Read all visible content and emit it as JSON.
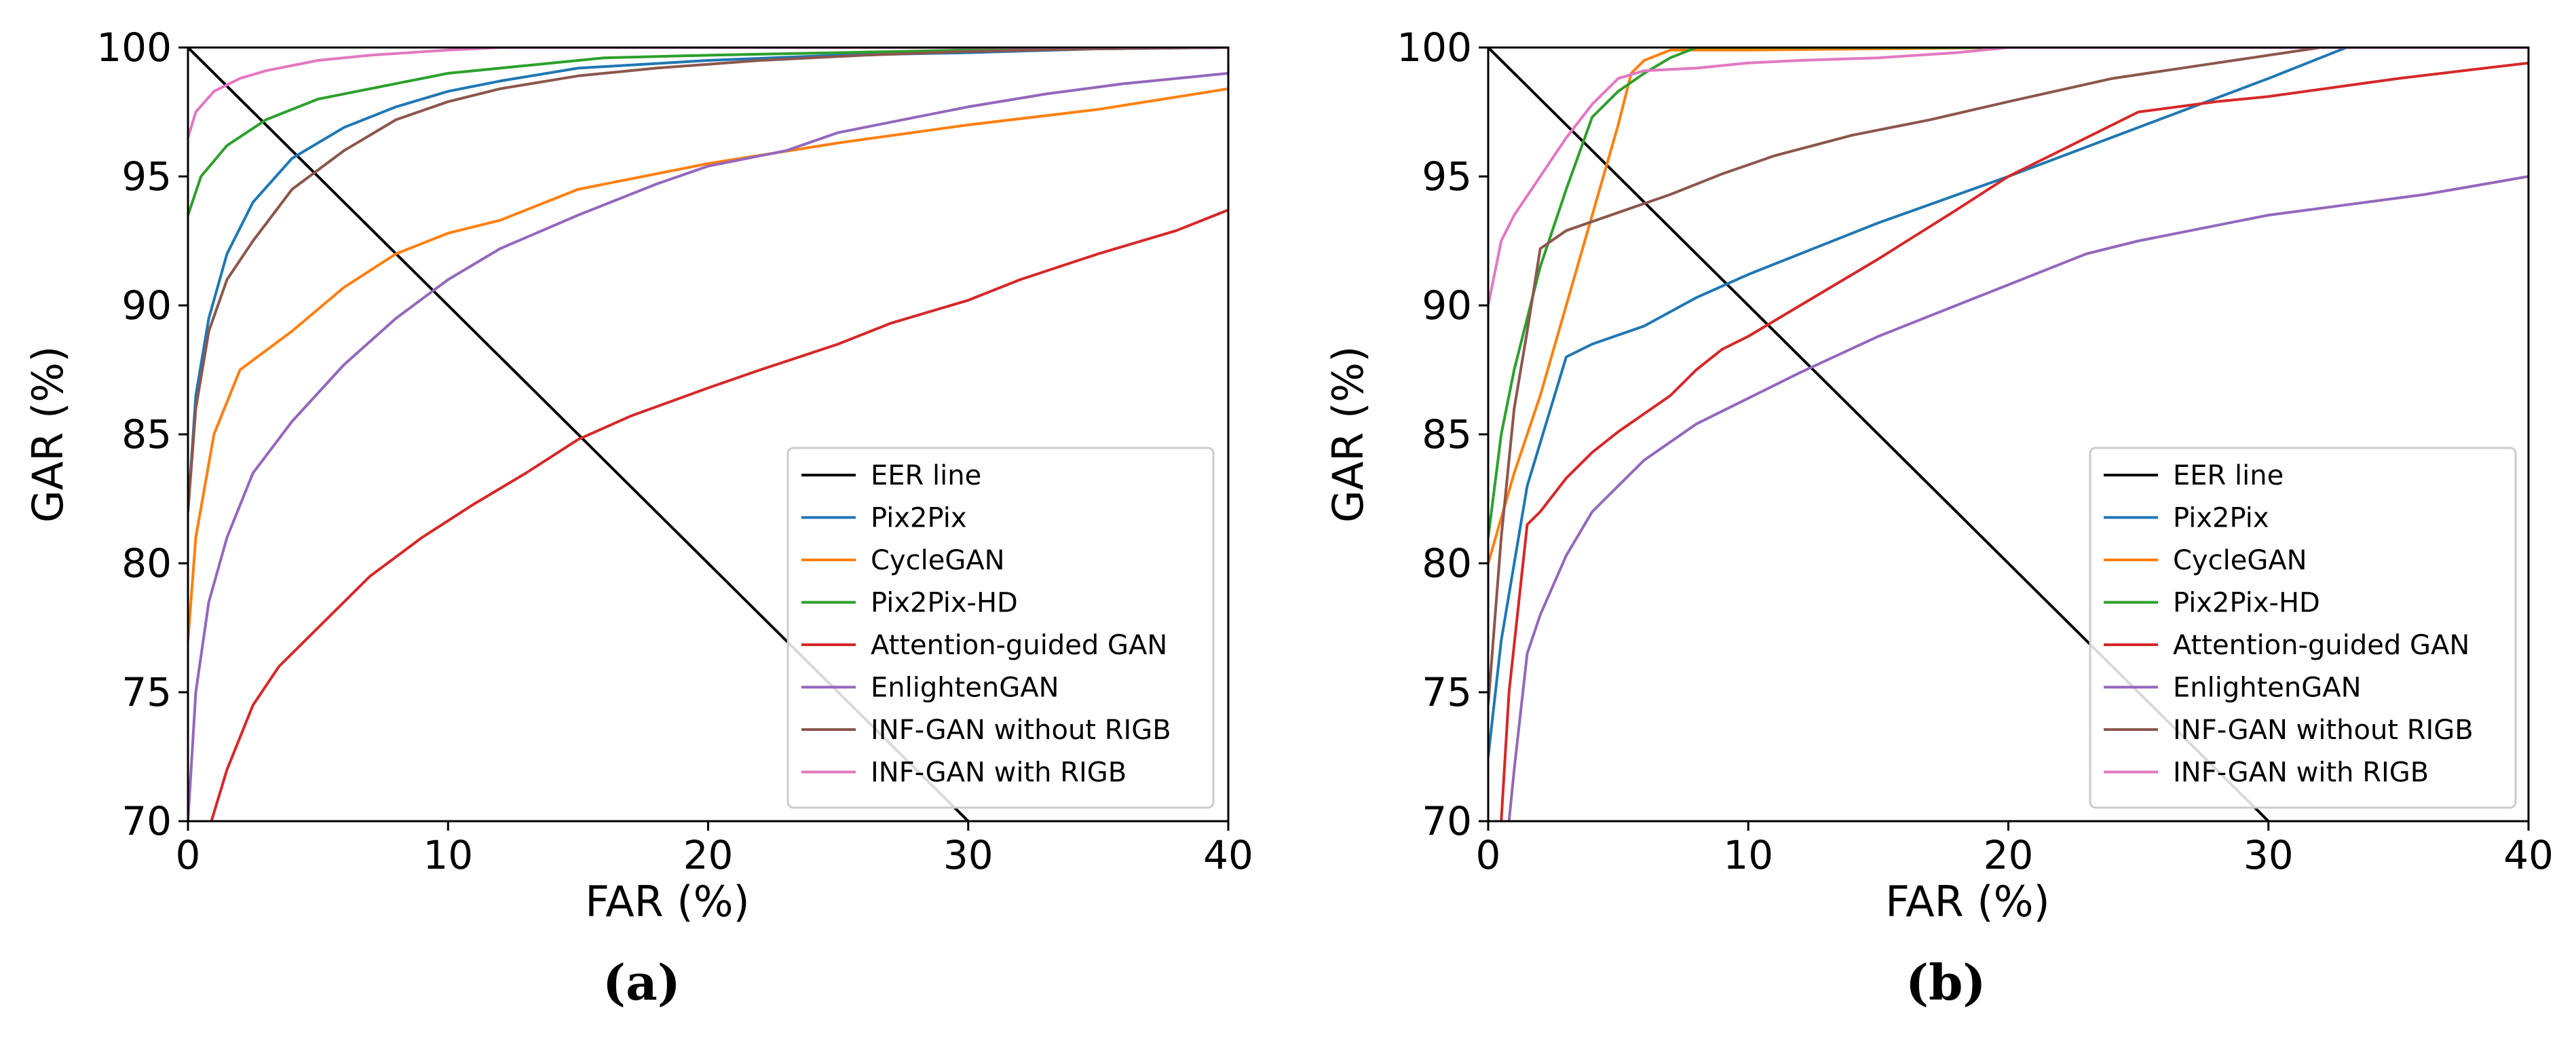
{
  "chart_data": [
    {
      "panel_label": "(a)",
      "type": "line",
      "xlabel": "FAR (%)",
      "ylabel": "GAR (%)",
      "xlim": [
        0,
        40
      ],
      "ylim": [
        70,
        100
      ],
      "xticks": [
        0,
        10,
        20,
        30,
        40
      ],
      "yticks": [
        70,
        75,
        80,
        85,
        90,
        95,
        100
      ],
      "grid": false,
      "legend_position": "lower-right",
      "series": [
        {
          "name": "EER line",
          "color": "#000000",
          "x": [
            0,
            30
          ],
          "y": [
            100,
            70
          ]
        },
        {
          "name": "Pix2Pix",
          "color": "#1f77b4",
          "x": [
            0,
            0.3,
            0.8,
            1.5,
            2.5,
            4,
            6,
            8,
            10,
            12,
            15,
            20,
            25,
            30,
            35,
            40
          ],
          "y": [
            82,
            86.5,
            89.5,
            92,
            94,
            95.7,
            96.9,
            97.7,
            98.3,
            98.7,
            99.2,
            99.5,
            99.7,
            99.8,
            99.95,
            100
          ]
        },
        {
          "name": "CycleGAN",
          "color": "#ff7f0e",
          "x": [
            0,
            0.3,
            1,
            2,
            4,
            6,
            8,
            10,
            12,
            15,
            20,
            25,
            30,
            35,
            40
          ],
          "y": [
            77,
            81,
            85,
            87.5,
            89,
            90.7,
            92,
            92.8,
            93.3,
            94.5,
            95.5,
            96.3,
            97,
            97.6,
            98.4
          ]
        },
        {
          "name": "Pix2Pix-HD",
          "color": "#2ca02c",
          "x": [
            0,
            0.5,
            1.5,
            3,
            5,
            8,
            10,
            13,
            16,
            20,
            25,
            30,
            35,
            40
          ],
          "y": [
            93.5,
            95,
            96.2,
            97.2,
            98,
            98.6,
            99,
            99.3,
            99.6,
            99.7,
            99.8,
            99.9,
            100,
            100
          ]
        },
        {
          "name": "Attention-guided GAN",
          "color": "#d62728",
          "x": [
            0.9,
            1.5,
            2.5,
            3.5,
            5,
            7,
            9,
            11,
            13,
            15,
            17,
            20,
            22,
            25,
            27,
            30,
            32,
            35,
            38,
            40
          ],
          "y": [
            70,
            72,
            74.5,
            76,
            77.5,
            79.5,
            81,
            82.3,
            83.5,
            84.8,
            85.7,
            86.8,
            87.5,
            88.5,
            89.3,
            90.2,
            91,
            92,
            92.9,
            93.7
          ]
        },
        {
          "name": "EnlightenGAN",
          "color": "#9467bd",
          "x": [
            0,
            0.3,
            0.8,
            1.5,
            2.5,
            4,
            6,
            8,
            10,
            12,
            15,
            18,
            20,
            23,
            25,
            28,
            30,
            33,
            36,
            40
          ],
          "y": [
            70,
            75,
            78.5,
            81,
            83.5,
            85.5,
            87.7,
            89.5,
            91,
            92.2,
            93.5,
            94.7,
            95.4,
            96,
            96.7,
            97.3,
            97.7,
            98.2,
            98.6,
            99
          ]
        },
        {
          "name": "INF-GAN without RIGB",
          "color": "#8c564b",
          "x": [
            0,
            0.3,
            0.8,
            1.5,
            2.5,
            4,
            6,
            8,
            10,
            12,
            15,
            18,
            22,
            26,
            30,
            35,
            40
          ],
          "y": [
            82,
            86,
            89,
            91,
            92.5,
            94.5,
            96,
            97.2,
            97.9,
            98.4,
            98.9,
            99.2,
            99.5,
            99.7,
            99.85,
            99.95,
            100
          ]
        },
        {
          "name": "INF-GAN with RIGB",
          "color": "#e377c2",
          "x": [
            0,
            0.3,
            1,
            2,
            3,
            5,
            7,
            10,
            12,
            15,
            20,
            30,
            40
          ],
          "y": [
            96.5,
            97.5,
            98.3,
            98.8,
            99.1,
            99.5,
            99.7,
            99.9,
            100,
            100,
            100,
            100,
            100
          ]
        }
      ]
    },
    {
      "panel_label": "(b)",
      "type": "line",
      "xlabel": "FAR (%)",
      "ylabel": "GAR (%)",
      "xlim": [
        0,
        40
      ],
      "ylim": [
        70,
        100
      ],
      "xticks": [
        0,
        10,
        20,
        30,
        40
      ],
      "yticks": [
        70,
        75,
        80,
        85,
        90,
        95,
        100
      ],
      "grid": false,
      "legend_position": "lower-right",
      "series": [
        {
          "name": "EER line",
          "color": "#000000",
          "x": [
            0,
            30
          ],
          "y": [
            100,
            70
          ]
        },
        {
          "name": "Pix2Pix",
          "color": "#1f77b4",
          "x": [
            0,
            0.5,
            1.5,
            3,
            4,
            6,
            8,
            10,
            12,
            15,
            20,
            25,
            30,
            33
          ],
          "y": [
            72.5,
            77,
            83,
            88,
            88.5,
            89.2,
            90.3,
            91.2,
            92,
            93.2,
            95,
            96.9,
            98.8,
            100
          ]
        },
        {
          "name": "CycleGAN",
          "color": "#ff7f0e",
          "x": [
            0,
            1,
            2,
            3,
            4,
            5,
            5.5,
            6,
            7,
            10,
            20,
            30,
            40
          ],
          "y": [
            80,
            83.5,
            86.5,
            90,
            93.5,
            97,
            99,
            99.5,
            99.9,
            99.9,
            100,
            100,
            100
          ]
        },
        {
          "name": "Pix2Pix-HD",
          "color": "#2ca02c",
          "x": [
            0,
            0.5,
            1,
            2,
            3,
            4,
            5,
            6,
            7,
            8,
            10,
            20,
            40
          ],
          "y": [
            81,
            85,
            87.5,
            91.5,
            94.5,
            97.3,
            98.3,
            99,
            99.6,
            100,
            100,
            100,
            100
          ]
        },
        {
          "name": "Attention-guided GAN",
          "color": "#d62728",
          "x": [
            0.5,
            0.8,
            1.5,
            2,
            3,
            4,
            5,
            6,
            7,
            8,
            9,
            10,
            12,
            15,
            18,
            20,
            22,
            25,
            28,
            30,
            35,
            40
          ],
          "y": [
            70,
            75,
            81.5,
            82,
            83.3,
            84.3,
            85.1,
            85.8,
            86.5,
            87.5,
            88.3,
            88.8,
            90,
            91.8,
            93.7,
            95,
            96,
            97.5,
            97.9,
            98.1,
            98.8,
            99.4
          ]
        },
        {
          "name": "EnlightenGAN",
          "color": "#9467bd",
          "x": [
            0.8,
            1,
            1.5,
            2,
            3,
            4,
            5,
            6,
            8,
            10,
            12,
            15,
            18,
            20,
            23,
            25,
            28,
            30,
            33,
            36,
            40
          ],
          "y": [
            70,
            72,
            76.5,
            78,
            80.3,
            82,
            83,
            84,
            85.4,
            86.4,
            87.4,
            88.8,
            90,
            90.8,
            92,
            92.5,
            93.1,
            93.5,
            93.9,
            94.3,
            95
          ]
        },
        {
          "name": "INF-GAN without RIGB",
          "color": "#8c564b",
          "x": [
            0,
            0.5,
            1,
            1.5,
            2,
            3,
            5,
            7,
            9,
            11,
            14,
            17,
            20,
            24,
            28,
            32,
            36,
            40
          ],
          "y": [
            74.5,
            81,
            86,
            89,
            92.2,
            92.9,
            93.6,
            94.3,
            95.1,
            95.8,
            96.6,
            97.2,
            97.9,
            98.8,
            99.4,
            100,
            100,
            100
          ]
        },
        {
          "name": "INF-GAN with RIGB",
          "color": "#e377c2",
          "x": [
            0,
            0.5,
            1,
            2,
            3,
            4,
            5,
            6,
            8,
            10,
            12,
            15,
            18,
            20,
            25,
            30,
            40
          ],
          "y": [
            90,
            92.5,
            93.5,
            95,
            96.5,
            97.8,
            98.8,
            99.1,
            99.2,
            99.4,
            99.5,
            99.6,
            99.8,
            100,
            100,
            100,
            100
          ]
        }
      ]
    }
  ]
}
